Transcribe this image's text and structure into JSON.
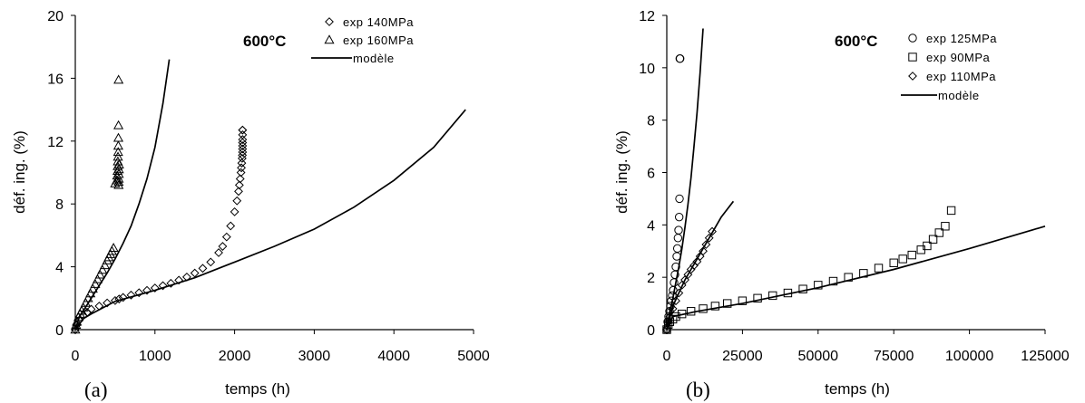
{
  "chart_data": [
    {
      "type": "scatter",
      "panel_label": "(a)",
      "title": "600°C",
      "xlabel": "temps (h)",
      "ylabel": "déf. ing. (%)",
      "xlim": [
        0,
        5000
      ],
      "ylim": [
        0,
        20
      ],
      "xticks": [
        0,
        1000,
        2000,
        3000,
        4000,
        5000
      ],
      "yticks": [
        0,
        4,
        8,
        12,
        16,
        20
      ],
      "xtick_labels": [
        "0",
        "1000",
        "2000",
        "3000",
        "4000",
        "5000"
      ],
      "ytick_labels": [
        "0",
        "4",
        "8",
        "12",
        "16",
        "20"
      ],
      "legend_position": "top-right",
      "series": [
        {
          "name": "exp 140MPa",
          "marker": "diamond",
          "x": [
            0,
            20,
            50,
            100,
            150,
            200,
            300,
            400,
            500,
            550,
            600,
            700,
            800,
            900,
            1000,
            1100,
            1200,
            1300,
            1400,
            1500,
            1600,
            1700,
            1800,
            1850,
            1900,
            1950,
            2000,
            2030,
            2050,
            2060,
            2070,
            2080,
            2085,
            2090,
            2095,
            2098,
            2100,
            2100,
            2100,
            2100,
            2100,
            2100,
            2100,
            2100
          ],
          "y": [
            0,
            0.3,
            0.6,
            0.9,
            1.1,
            1.3,
            1.5,
            1.7,
            1.85,
            1.95,
            2.05,
            2.2,
            2.35,
            2.5,
            2.65,
            2.8,
            2.95,
            3.15,
            3.35,
            3.6,
            3.9,
            4.3,
            4.9,
            5.3,
            5.9,
            6.6,
            7.5,
            8.2,
            8.8,
            9.2,
            9.6,
            10.0,
            10.3,
            10.6,
            10.9,
            11.1,
            11.3,
            11.5,
            11.7,
            11.9,
            12.1,
            12.4,
            12.7,
            12.7
          ]
        },
        {
          "name": "exp 160MPa",
          "marker": "triangle",
          "x": [
            0,
            10,
            20,
            40,
            60,
            80,
            100,
            130,
            160,
            190,
            220,
            250,
            280,
            310,
            340,
            370,
            400,
            420,
            440,
            460,
            480,
            500,
            520,
            525,
            530,
            532,
            534,
            536,
            538,
            540,
            541,
            542,
            543,
            544,
            545,
            546,
            547,
            548,
            550
          ],
          "y": [
            0,
            0.3,
            0.5,
            0.8,
            1.0,
            1.2,
            1.4,
            1.7,
            2.0,
            2.3,
            2.6,
            2.9,
            3.2,
            3.5,
            3.8,
            4.1,
            4.4,
            4.6,
            4.8,
            5.0,
            5.2,
            9.3,
            9.5,
            9.8,
            10.1,
            10.4,
            10.7,
            11.0,
            11.3,
            11.7,
            12.2,
            13.0,
            15.9,
            9.2,
            9.4,
            9.6,
            9.9,
            10.2,
            10.5
          ]
        }
      ],
      "model_curves": [
        {
          "name": "modèle",
          "x": [
            0,
            50,
            100,
            200,
            300,
            400,
            500,
            600,
            700,
            800,
            900,
            1000,
            1100,
            1180
          ],
          "y": [
            0,
            0.8,
            1.2,
            2.0,
            2.8,
            3.6,
            4.5,
            5.5,
            6.6,
            8.0,
            9.6,
            11.6,
            14.4,
            17.2
          ]
        },
        {
          "name": "modèle",
          "x": [
            0,
            100,
            200,
            500,
            1000,
            1500,
            1800,
            2000,
            2500,
            3000,
            3500,
            4000,
            4500,
            4900
          ],
          "y": [
            0,
            0.7,
            1.0,
            1.8,
            2.5,
            3.3,
            3.9,
            4.3,
            5.3,
            6.4,
            7.8,
            9.5,
            11.6,
            14.0
          ]
        }
      ],
      "legend": [
        {
          "label": "exp 140MPa",
          "marker": "diamond"
        },
        {
          "label": "exp 160MPa",
          "marker": "triangle"
        },
        {
          "label": "modèle",
          "marker": "line"
        }
      ]
    },
    {
      "type": "scatter",
      "panel_label": "(b)",
      "title": "600°C",
      "xlabel": "temps (h)",
      "ylabel": "déf. ing. (%)",
      "xlim": [
        0,
        125000
      ],
      "ylim": [
        0,
        12
      ],
      "xticks": [
        0,
        25000,
        50000,
        75000,
        100000,
        125000
      ],
      "yticks": [
        0,
        2,
        4,
        6,
        8,
        10,
        12
      ],
      "xtick_labels": [
        "0",
        "25000",
        "50000",
        "75000",
        "100000",
        "125000"
      ],
      "ytick_labels": [
        "0",
        "2",
        "4",
        "6",
        "8",
        "10",
        "12"
      ],
      "legend_position": "top-right",
      "series": [
        {
          "name": "exp 125MPa",
          "marker": "circle",
          "x": [
            0,
            300,
            600,
            900,
            1200,
            1500,
            1800,
            2100,
            2400,
            2700,
            3000,
            3300,
            3500,
            3700,
            3900,
            4100,
            4200,
            4300,
            4400
          ],
          "y": [
            0,
            0.3,
            0.5,
            0.7,
            0.9,
            1.1,
            1.3,
            1.5,
            1.8,
            2.1,
            2.4,
            2.8,
            3.1,
            3.5,
            3.8,
            4.3,
            5.0,
            10.35,
            10.35
          ]
        },
        {
          "name": "exp 90MPa",
          "marker": "square",
          "x": [
            0,
            500,
            1000,
            2000,
            3000,
            5000,
            8000,
            12000,
            16000,
            20000,
            25000,
            30000,
            35000,
            40000,
            45000,
            50000,
            55000,
            60000,
            65000,
            70000,
            75000,
            78000,
            81000,
            84000,
            86000,
            88000,
            90000,
            92000,
            94000
          ],
          "y": [
            0,
            0.2,
            0.3,
            0.4,
            0.5,
            0.6,
            0.7,
            0.8,
            0.9,
            1.0,
            1.1,
            1.2,
            1.3,
            1.4,
            1.55,
            1.7,
            1.85,
            2.0,
            2.15,
            2.35,
            2.55,
            2.7,
            2.85,
            3.05,
            3.2,
            3.45,
            3.7,
            3.95,
            4.55
          ]
        },
        {
          "name": "exp 110MPa",
          "marker": "diamond",
          "x": [
            0,
            500,
            1000,
            2000,
            3000,
            4000,
            5000,
            6000,
            7000,
            8000,
            9000,
            10000,
            11000,
            12000,
            13000,
            14000,
            15000
          ],
          "y": [
            0,
            0.3,
            0.5,
            0.8,
            1.1,
            1.4,
            1.7,
            1.9,
            2.1,
            2.3,
            2.45,
            2.6,
            2.8,
            3.0,
            3.25,
            3.5,
            3.75
          ]
        }
      ],
      "model_curves": [
        {
          "name": "modèle",
          "x": [
            0,
            1000,
            2000,
            3000,
            4000,
            5000,
            6000,
            7000,
            8000,
            9000,
            10000,
            11000,
            12000
          ],
          "y": [
            0,
            0.7,
            1.2,
            1.8,
            2.4,
            3.1,
            3.9,
            4.8,
            5.8,
            7.0,
            8.3,
            9.8,
            11.5
          ]
        },
        {
          "name": "modèle",
          "x": [
            0,
            2000,
            4000,
            6000,
            8000,
            10000,
            12000,
            14000,
            16000,
            18000,
            20000,
            22000
          ],
          "y": [
            0,
            0.9,
            1.4,
            1.9,
            2.3,
            2.7,
            3.1,
            3.5,
            3.9,
            4.3,
            4.6,
            4.9
          ]
        },
        {
          "name": "modèle",
          "x": [
            0,
            2000,
            10000,
            25000,
            50000,
            75000,
            100000,
            125000
          ],
          "y": [
            0,
            0.5,
            0.7,
            1.0,
            1.6,
            2.3,
            3.1,
            3.95
          ]
        }
      ],
      "legend": [
        {
          "label": "exp 125MPa",
          "marker": "circle"
        },
        {
          "label": "exp 90MPa",
          "marker": "square"
        },
        {
          "label": "exp 110MPa",
          "marker": "diamond"
        },
        {
          "label": "modèle",
          "marker": "line"
        }
      ]
    }
  ]
}
